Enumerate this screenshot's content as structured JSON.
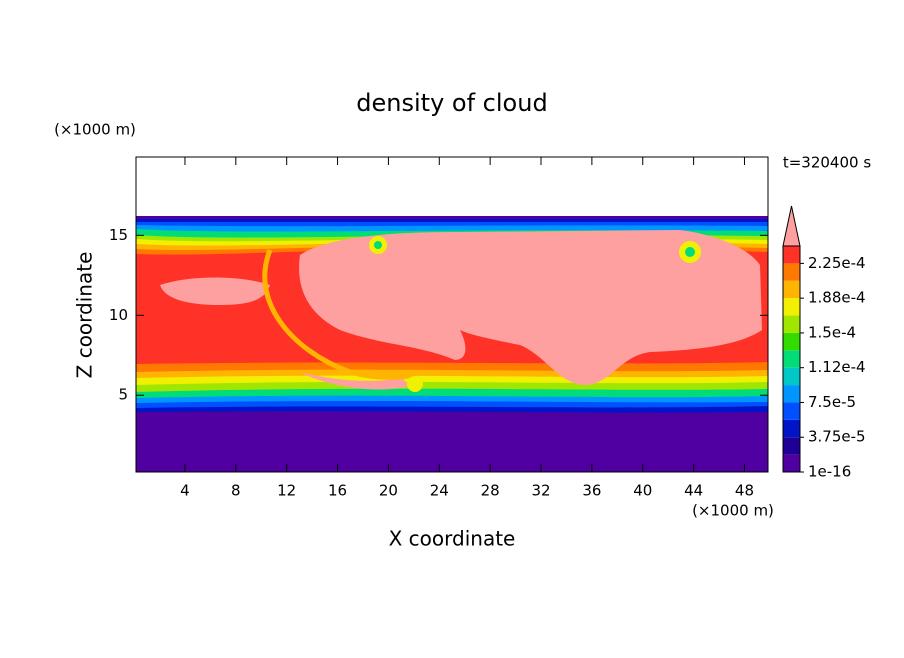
{
  "chart_data": {
    "type": "contour",
    "title": "density of cloud",
    "x_label": "X coordinate",
    "y_label": "Z coordinate",
    "x_unit": "(×1000 m)",
    "y_unit": "(×1000 m)",
    "time_label": "t=320400 s",
    "xlim": [
      0.15,
      49.85
    ],
    "xticks": [
      4,
      8,
      12,
      16,
      20,
      24,
      28,
      32,
      36,
      40,
      44,
      48
    ],
    "ylim": [
      0.2,
      19.9
    ],
    "yticks": [
      5,
      10,
      15
    ],
    "colorbar_lim": [
      1e-16,
      0.00024375
    ],
    "colorbar_ticks": [
      {
        "value": 1e-16,
        "label": "1e-16"
      },
      {
        "value": 3.75e-05,
        "label": "3.75e-5"
      },
      {
        "value": 7.5e-05,
        "label": "7.5e-5"
      },
      {
        "value": 0.0001125,
        "label": "1.12e-4"
      },
      {
        "value": 0.00015,
        "label": "1.5e-4"
      },
      {
        "value": 0.0001875,
        "label": "1.88e-4"
      },
      {
        "value": 0.000225,
        "label": "2.25e-4"
      }
    ],
    "colors": [
      "#5000a0",
      "#1e0096",
      "#0014c8",
      "#0050ff",
      "#0096ff",
      "#00c8c8",
      "#00dc78",
      "#32dc00",
      "#a0e600",
      "#f0f000",
      "#ffb400",
      "#ff7800",
      "#ff3228"
    ],
    "over_color": "#ffa0a0"
  }
}
